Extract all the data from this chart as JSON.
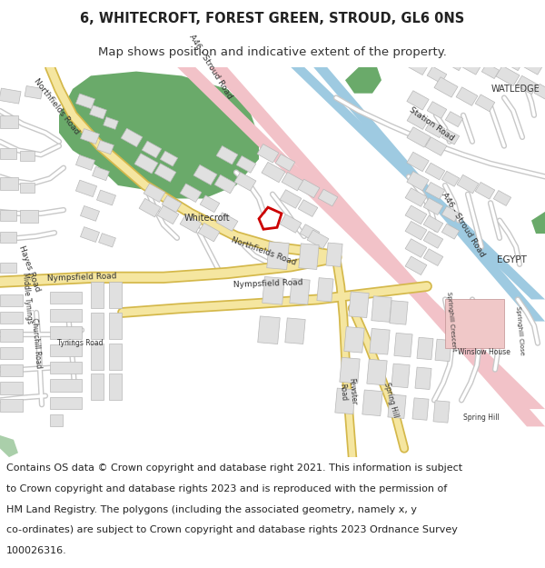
{
  "title_line1": "6, WHITECROFT, FOREST GREEN, STROUD, GL6 0NS",
  "title_line2": "Map shows position and indicative extent of the property.",
  "footer_lines": [
    "Contains OS data © Crown copyright and database right 2021. This information is subject",
    "to Crown copyright and database rights 2023 and is reproduced with the permission of",
    "HM Land Registry. The polygons (including the associated geometry, namely x, y",
    "co-ordinates) are subject to Crown copyright and database rights 2023 Ordnance Survey",
    "100026316."
  ],
  "title_fontsize": 10.5,
  "subtitle_fontsize": 9.5,
  "footer_fontsize": 8.0,
  "bg_color": "#ffffff",
  "map_bg": "#f8f8f8",
  "road_yellow_color": "#f5e6a0",
  "road_yellow_outline": "#d4b84a",
  "road_white_color": "#ffffff",
  "road_white_outline": "#cccccc",
  "green_dark_color": "#6aaa6a",
  "green_light_color": "#aacfaa",
  "blue_canal_color": "#9ecae1",
  "pink_road_color": "#f2c2c8",
  "pink_road_outline": "#e8a8b0",
  "building_color": "#e0e0e0",
  "building_outline": "#b8b8b8",
  "property_color": "#cc0000",
  "text_color": "#444444",
  "label_color": "#333333"
}
